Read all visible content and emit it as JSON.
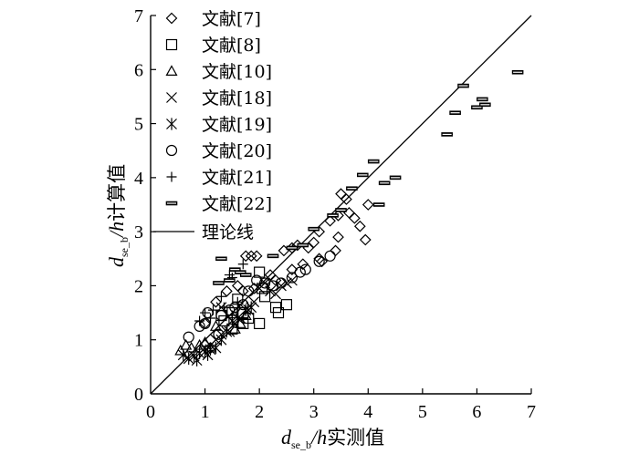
{
  "chart_data": {
    "type": "scatter",
    "xlabel": {
      "var": "d",
      "sub": "se_b",
      "rest_italic": "/h",
      "rest_text": "实测值"
    },
    "ylabel": {
      "var": "d",
      "sub": "se_b",
      "rest_italic": "/h",
      "rest_text": "计算值"
    },
    "xlim": [
      0,
      7
    ],
    "ylim": [
      0,
      7
    ],
    "x_ticks": [
      "0",
      "1",
      "2",
      "3",
      "4",
      "5",
      "6",
      "7"
    ],
    "y_ticks": [
      "0",
      "1",
      "2",
      "3",
      "4",
      "5",
      "6",
      "7"
    ],
    "grid": false,
    "legend_position": "top-left",
    "reference_line": {
      "name": "理论线",
      "from": [
        0,
        0
      ],
      "to": [
        7,
        7
      ]
    },
    "series": [
      {
        "name": "文献[7]",
        "marker": "diamond",
        "points": [
          [
            1.75,
            2.55
          ],
          [
            1.85,
            2.55
          ],
          [
            1.95,
            2.55
          ],
          [
            2.45,
            2.65
          ],
          [
            2.6,
            2.7
          ],
          [
            2.7,
            2.75
          ],
          [
            2.9,
            2.7
          ],
          [
            3.0,
            2.8
          ],
          [
            3.1,
            3.0
          ],
          [
            3.3,
            3.2
          ],
          [
            3.45,
            3.3
          ],
          [
            3.5,
            3.7
          ],
          [
            3.6,
            3.6
          ],
          [
            3.65,
            3.35
          ],
          [
            3.75,
            3.25
          ],
          [
            3.45,
            2.9
          ],
          [
            3.4,
            2.65
          ],
          [
            3.85,
            3.1
          ],
          [
            3.95,
            2.85
          ],
          [
            4.0,
            3.5
          ],
          [
            2.2,
            2.2
          ],
          [
            2.3,
            2.1
          ],
          [
            2.6,
            2.3
          ],
          [
            2.8,
            2.4
          ],
          [
            3.1,
            2.5
          ],
          [
            3.15,
            2.45
          ],
          [
            1.6,
            2.0
          ],
          [
            1.4,
            1.9
          ],
          [
            1.2,
            1.7
          ],
          [
            1.0,
            1.3
          ],
          [
            1.7,
            1.9
          ],
          [
            1.9,
            1.95
          ]
        ]
      },
      {
        "name": "文献[8]",
        "marker": "square",
        "points": [
          [
            1.3,
            1.45
          ],
          [
            1.35,
            1.35
          ],
          [
            1.5,
            1.5
          ],
          [
            1.6,
            1.75
          ],
          [
            1.7,
            1.5
          ],
          [
            1.8,
            1.4
          ],
          [
            2.0,
            1.3
          ],
          [
            2.0,
            2.25
          ],
          [
            2.1,
            1.8
          ],
          [
            2.3,
            1.6
          ],
          [
            2.35,
            1.5
          ],
          [
            2.5,
            1.65
          ],
          [
            1.5,
            1.2
          ],
          [
            1.7,
            1.3
          ],
          [
            2.05,
            1.95
          ]
        ]
      },
      {
        "name": "文献[10]",
        "marker": "triangle",
        "points": [
          [
            0.55,
            0.8
          ],
          [
            0.65,
            0.9
          ],
          [
            0.75,
            0.85
          ],
          [
            0.9,
            0.9
          ],
          [
            1.0,
            0.95
          ],
          [
            1.1,
            0.85
          ],
          [
            1.55,
            1.2
          ],
          [
            1.65,
            1.3
          ],
          [
            1.75,
            1.45
          ],
          [
            1.2,
            1.25
          ]
        ]
      },
      {
        "name": "文献[18]",
        "marker": "x",
        "points": [
          [
            1.0,
            0.85
          ],
          [
            1.1,
            0.9
          ],
          [
            1.2,
            1.0
          ],
          [
            1.3,
            1.1
          ],
          [
            1.45,
            1.15
          ],
          [
            1.55,
            1.3
          ],
          [
            1.65,
            1.4
          ],
          [
            1.8,
            1.55
          ],
          [
            1.9,
            1.7
          ],
          [
            2.0,
            1.95
          ],
          [
            2.1,
            2.05
          ],
          [
            2.2,
            1.9
          ],
          [
            2.3,
            1.85
          ],
          [
            2.4,
            2.0
          ],
          [
            2.5,
            2.05
          ],
          [
            2.6,
            2.1
          ],
          [
            1.3,
            1.6
          ]
        ]
      },
      {
        "name": "文献[19]",
        "marker": "asterisk",
        "points": [
          [
            0.6,
            0.72
          ],
          [
            0.7,
            0.65
          ],
          [
            0.8,
            0.7
          ],
          [
            0.9,
            0.75
          ],
          [
            1.0,
            0.78
          ],
          [
            1.1,
            0.82
          ],
          [
            1.2,
            0.85
          ],
          [
            1.3,
            1.0
          ],
          [
            1.4,
            1.15
          ],
          [
            1.5,
            1.35
          ],
          [
            1.6,
            1.4
          ],
          [
            1.75,
            1.55
          ],
          [
            1.85,
            1.6
          ],
          [
            0.85,
            0.62
          ],
          [
            1.05,
            0.72
          ]
        ]
      },
      {
        "name": "文献[20]",
        "marker": "circle",
        "points": [
          [
            0.7,
            1.05
          ],
          [
            0.9,
            1.25
          ],
          [
            1.0,
            1.3
          ],
          [
            1.25,
            1.1
          ],
          [
            1.3,
            1.45
          ],
          [
            1.45,
            1.55
          ],
          [
            1.55,
            1.6
          ],
          [
            1.8,
            1.9
          ],
          [
            1.95,
            2.1
          ],
          [
            2.1,
            2.05
          ],
          [
            2.25,
            2.0
          ],
          [
            2.4,
            2.05
          ],
          [
            2.6,
            2.15
          ],
          [
            2.75,
            2.25
          ],
          [
            2.85,
            2.3
          ],
          [
            3.1,
            2.45
          ],
          [
            3.3,
            2.55
          ],
          [
            1.7,
            1.65
          ],
          [
            1.05,
            1.5
          ]
        ]
      },
      {
        "name": "文献[21]",
        "marker": "plus",
        "points": [
          [
            0.9,
            1.35
          ],
          [
            1.0,
            1.5
          ],
          [
            1.1,
            1.4
          ],
          [
            1.15,
            1.55
          ],
          [
            1.35,
            1.6
          ],
          [
            1.5,
            1.45
          ],
          [
            1.6,
            1.7
          ],
          [
            1.7,
            2.4
          ],
          [
            1.45,
            2.2
          ],
          [
            1.5,
            2.15
          ],
          [
            1.3,
            1.8
          ]
        ]
      },
      {
        "name": "文献[22]",
        "marker": "dash",
        "points": [
          [
            1.25,
            2.05
          ],
          [
            1.45,
            2.1
          ],
          [
            1.65,
            2.25
          ],
          [
            1.75,
            2.2
          ],
          [
            1.55,
            2.3
          ],
          [
            1.3,
            2.5
          ],
          [
            2.25,
            2.55
          ],
          [
            2.6,
            2.7
          ],
          [
            2.8,
            2.75
          ],
          [
            3.0,
            3.05
          ],
          [
            3.35,
            3.3
          ],
          [
            3.5,
            3.4
          ],
          [
            3.7,
            3.8
          ],
          [
            3.9,
            4.05
          ],
          [
            4.1,
            4.3
          ],
          [
            4.3,
            3.9
          ],
          [
            4.5,
            4.0
          ],
          [
            4.2,
            3.5
          ],
          [
            5.45,
            4.8
          ],
          [
            5.6,
            5.2
          ],
          [
            5.75,
            5.7
          ],
          [
            6.0,
            5.3
          ],
          [
            6.1,
            5.45
          ],
          [
            6.15,
            5.35
          ],
          [
            6.75,
            5.95
          ]
        ]
      }
    ]
  }
}
